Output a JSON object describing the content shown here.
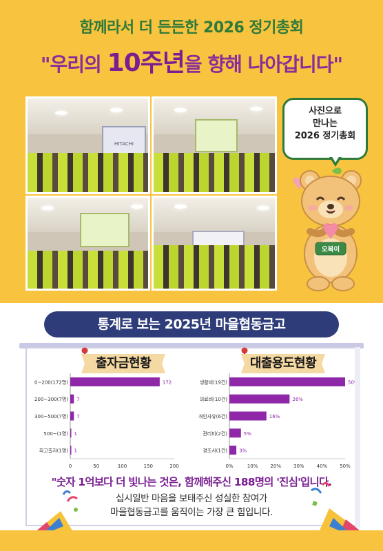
{
  "header": {
    "title1": "함께라서 더 든든한 2026 정기총회",
    "title2_pre": "\"우리의 ",
    "title2_big": "10주년",
    "title2_post": "을 향해 나아갑니다\""
  },
  "photos": {
    "p1_screen_text": "HITACHI"
  },
  "bubble": {
    "line1": "사진으로",
    "line2": "만나는",
    "line3": "2026 정기총회"
  },
  "mascot": {
    "badge": "오복이"
  },
  "section": {
    "title": "통계로 보는 2025년 마을협동금고"
  },
  "chart_data": [
    {
      "type": "bar",
      "orientation": "horizontal",
      "title": "출자금현황",
      "categories": [
        "0~200(172명)",
        "200~300(7명)",
        "300~500(7명)",
        "500~(1명)",
        "최고출자(1명)"
      ],
      "values": [
        172,
        7,
        7,
        1,
        1
      ],
      "value_labels": [
        "172",
        "7",
        "7",
        "1",
        "1"
      ],
      "xlim": [
        0,
        200
      ],
      "x_ticks": [
        "0",
        "50",
        "100",
        "150",
        "200"
      ],
      "color": "#8e27a8"
    },
    {
      "type": "bar",
      "orientation": "horizontal",
      "title": "대출용도현황",
      "categories": [
        "생활비(19건)",
        "의료비(10건)",
        "개인사유(6건)",
        "관리비(2건)",
        "경조사(1건)"
      ],
      "values": [
        50,
        26,
        16,
        5,
        3
      ],
      "value_labels": [
        "50%",
        "26%",
        "16%",
        "5%",
        "3%"
      ],
      "xlim": [
        0,
        50
      ],
      "x_ticks": [
        "0%",
        "10%",
        "20%",
        "30%",
        "40%",
        "50%"
      ],
      "color": "#8e27a8"
    }
  ],
  "footer": {
    "quote": "\"숫자 1억보다 더 빛나는 것은, 함께해주신 188명의 '진심'입니다.",
    "sub1": "십시일반 마음을 보태주신 성실한 참여가",
    "sub2": "마을협동금고를 움직이는 가장 큰 힘입니다."
  },
  "colors": {
    "background_top": "#f8c33e",
    "title_green": "#2d7a3a",
    "title_purple": "#8a2c9a",
    "section_navy": "#2f3c7a",
    "bar": "#8e27a8"
  }
}
